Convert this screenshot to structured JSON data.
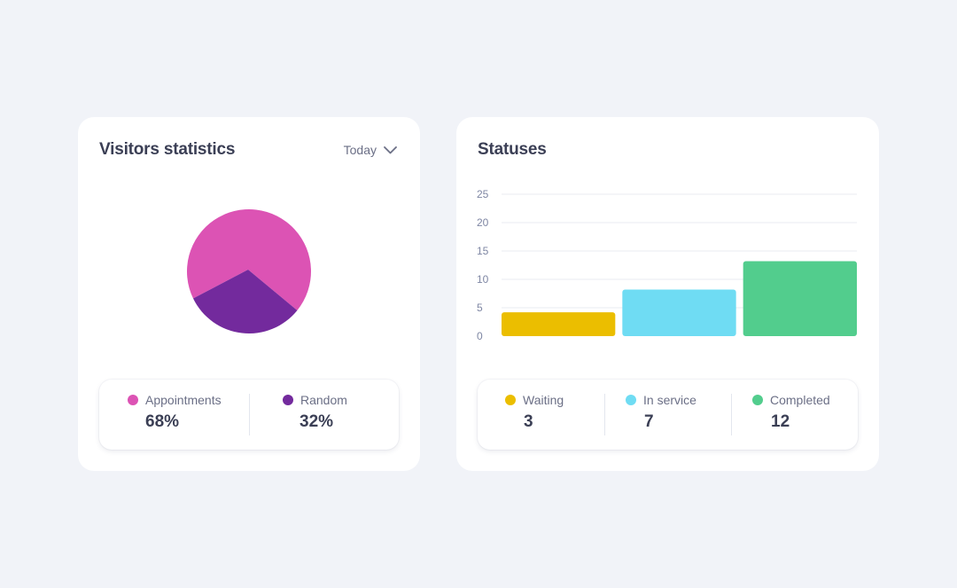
{
  "visitors": {
    "title": "Visitors statistics",
    "period_label": "Today",
    "legend": [
      {
        "label": "Appointments",
        "value": "68%",
        "color": "#dc53b4"
      },
      {
        "label": "Random",
        "value": "32%",
        "color": "#732a9d"
      }
    ]
  },
  "statuses": {
    "title": "Statuses",
    "legend": [
      {
        "label": "Waiting",
        "value": "3",
        "color": "#ebbe00"
      },
      {
        "label": "In service",
        "value": "7",
        "color": "#6fdcf3"
      },
      {
        "label": "Completed",
        "value": "12",
        "color": "#52cd8d"
      }
    ]
  },
  "chart_data": [
    {
      "type": "pie",
      "title": "Visitors statistics",
      "categories": [
        "Appointments",
        "Random"
      ],
      "values": [
        68,
        32
      ],
      "colors": [
        "#dc53b4",
        "#732a9d"
      ]
    },
    {
      "type": "bar",
      "title": "Statuses",
      "categories": [
        "Waiting",
        "In service",
        "Completed"
      ],
      "values": [
        3,
        7,
        12
      ],
      "colors": [
        "#ebbe00",
        "#6fdcf3",
        "#52cd8d"
      ],
      "ylim": [
        0,
        25
      ],
      "yticks": [
        "0",
        "5",
        "10",
        "15",
        "20",
        "25"
      ],
      "grid": true
    }
  ]
}
